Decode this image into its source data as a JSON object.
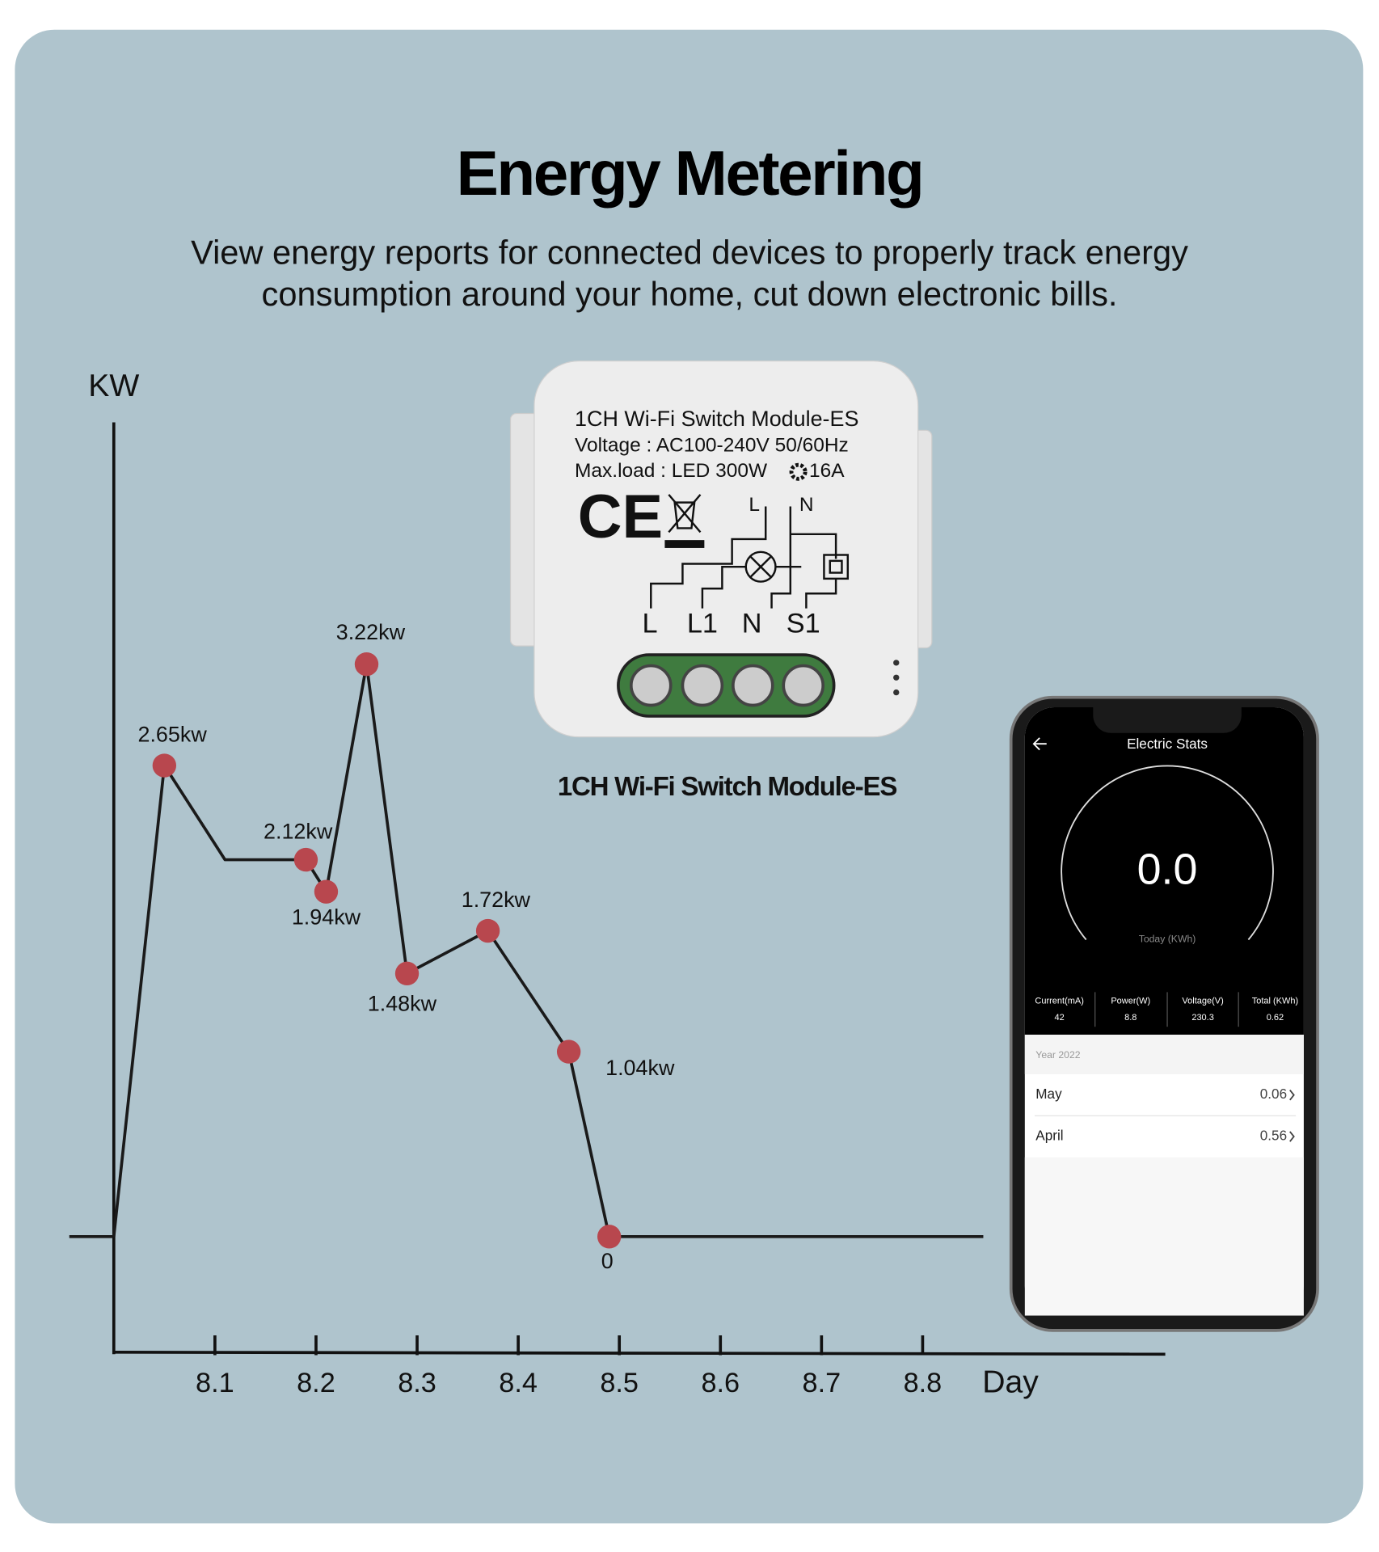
{
  "header": {
    "title": "Energy Metering",
    "subtitle": [
      "View energy reports for connected devices to properly track energy",
      "consumption around your home, cut down electronic bills."
    ]
  },
  "chart_data": {
    "type": "line",
    "y_label": "KW",
    "x_label": "Day",
    "xlim": [
      8.0,
      9.04
    ],
    "xticks": [
      8.1,
      8.2,
      8.3,
      8.4,
      8.5,
      8.6,
      8.7,
      8.8
    ],
    "ylim": [
      -0.65,
      4.58
    ],
    "series": [
      {
        "color": "#1a1a1a",
        "marker_color": "#b8474e",
        "x": [
          8.0,
          8.05,
          8.11,
          8.19,
          8.21,
          8.25,
          8.29,
          8.37,
          8.45,
          8.49,
          8.86
        ],
        "values": [
          0,
          2.65,
          2.12,
          2.12,
          1.94,
          3.22,
          1.48,
          1.72,
          1.04,
          0,
          0
        ],
        "value_labels": [
          null,
          "2.65kw",
          null,
          "2.12kw",
          "1.94kw",
          "3.22kw",
          "1.48kw",
          "1.72kw",
          "1.04kw",
          "0",
          null
        ]
      }
    ]
  },
  "device": {
    "label_lines": [
      "1CH Wi-Fi Switch Module-ES",
      "Voltage : AC100-240V 50/60Hz",
      "Max.load : LED 300W"
    ],
    "rating": "16A",
    "mark": "CE",
    "diagram_top": [
      "L",
      "N"
    ],
    "terminals": [
      "L",
      "L1",
      "N",
      "S1"
    ],
    "caption": "1CH Wi-Fi Switch Module-ES"
  },
  "phone": {
    "screen_title": "Electric Stats",
    "reading": "0.0",
    "reading_unit": "Today (KWh)",
    "stats": [
      {
        "label": "Current(mA)",
        "value": "42"
      },
      {
        "label": "Power(W)",
        "value": "8.8"
      },
      {
        "label": "Voltage(V)",
        "value": "230.3"
      },
      {
        "label": "Total (KWh)",
        "value": "0.62"
      }
    ],
    "year": "Year 2022",
    "months": [
      {
        "name": "May",
        "value": "0.06"
      },
      {
        "name": "April",
        "value": "0.56"
      }
    ]
  }
}
